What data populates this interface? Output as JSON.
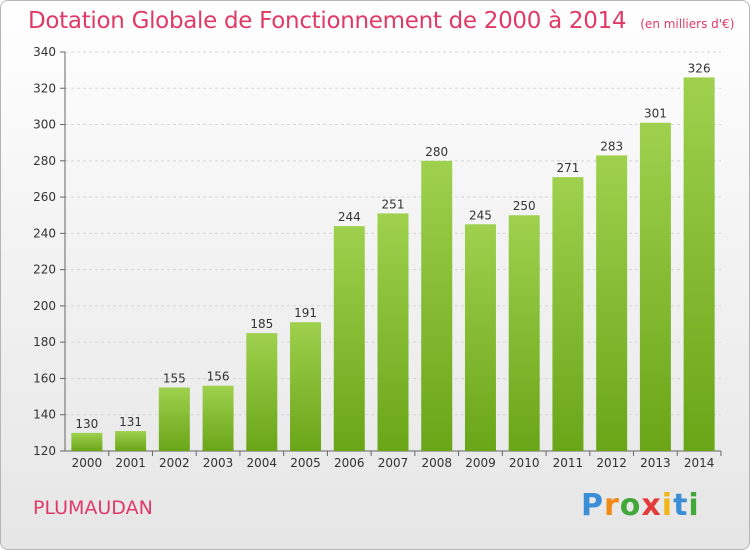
{
  "header": {
    "title": "Dotation Globale de Fonctionnement de 2000 à 2014",
    "unit": "(en milliers d'€)"
  },
  "footer": {
    "commune": "PLUMAUDAN",
    "logo": {
      "letters": [
        "P",
        "r",
        "o",
        "x",
        "i",
        "t",
        "i"
      ],
      "colors": [
        "#3b8fd6",
        "#f28a1a",
        "#43a83a",
        "#e23a3a",
        "#f2b51a",
        "#3b8fd6",
        "#43a83a"
      ]
    }
  },
  "chart_data": {
    "type": "bar",
    "title": "Dotation Globale de Fonctionnement de 2000 à 2014",
    "subtitle": "(en milliers d'€)",
    "categories": [
      "2000",
      "2001",
      "2002",
      "2003",
      "2004",
      "2005",
      "2006",
      "2007",
      "2008",
      "2009",
      "2010",
      "2011",
      "2012",
      "2013",
      "2014"
    ],
    "values": [
      130,
      131,
      155,
      156,
      185,
      191,
      244,
      251,
      280,
      245,
      250,
      271,
      283,
      301,
      326
    ],
    "ylim": [
      120,
      340
    ],
    "yticks": [
      120,
      140,
      160,
      180,
      200,
      220,
      240,
      260,
      280,
      300,
      320,
      340
    ],
    "grid": true,
    "bar_color": "#8cc63f",
    "data_labels": true
  }
}
